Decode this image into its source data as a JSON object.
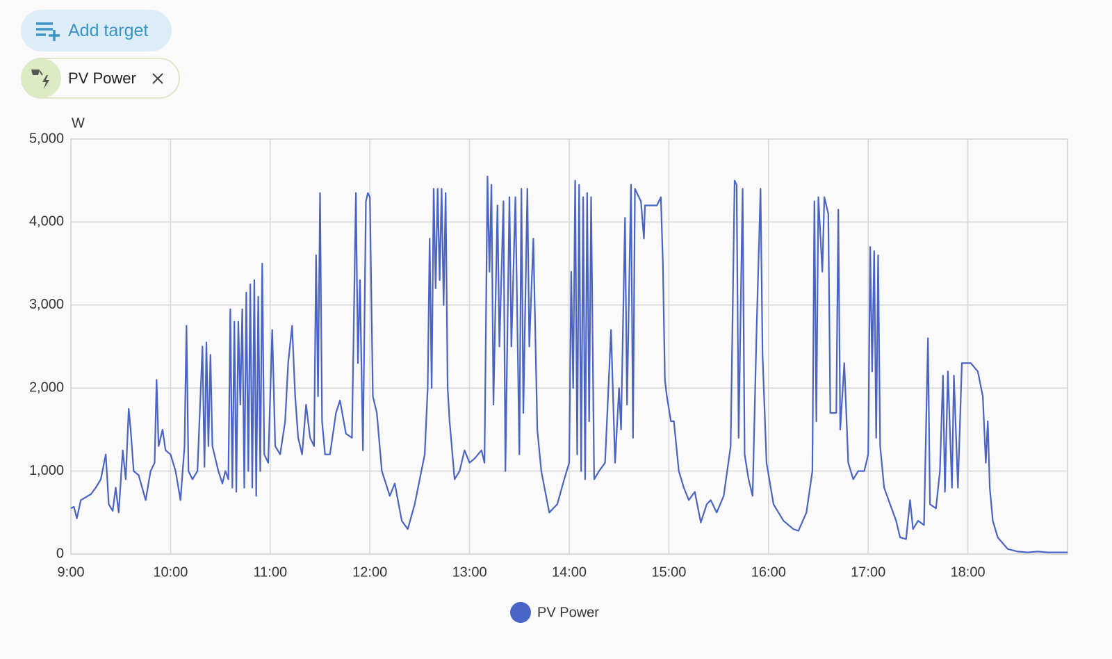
{
  "toolbar": {
    "add_target": "Add target",
    "target_chip": "PV Power"
  },
  "chart_data": {
    "type": "line",
    "y_axis_label": "W",
    "x": [
      9,
      9.03,
      9.06,
      9.1,
      9.2,
      9.25,
      9.3,
      9.35,
      9.38,
      9.42,
      9.45,
      9.48,
      9.52,
      9.55,
      9.58,
      9.6,
      9.63,
      9.68,
      9.75,
      9.8,
      9.84,
      9.86,
      9.88,
      9.92,
      9.95,
      10,
      10.05,
      10.1,
      10.14,
      10.16,
      10.18,
      10.22,
      10.27,
      10.32,
      10.34,
      10.36,
      10.38,
      10.4,
      10.42,
      10.48,
      10.52,
      10.55,
      10.58,
      10.6,
      10.62,
      10.64,
      10.66,
      10.68,
      10.7,
      10.72,
      10.74,
      10.76,
      10.78,
      10.8,
      10.82,
      10.84,
      10.86,
      10.88,
      10.9,
      10.92,
      10.94,
      10.98,
      11.02,
      11.05,
      11.1,
      11.15,
      11.18,
      11.22,
      11.25,
      11.28,
      11.32,
      11.36,
      11.4,
      11.44,
      11.46,
      11.48,
      11.5,
      11.52,
      11.55,
      11.6,
      11.66,
      11.7,
      11.76,
      11.82,
      11.86,
      11.88,
      11.9,
      11.93,
      11.96,
      11.98,
      12,
      12.03,
      12.07,
      12.12,
      12.2,
      12.25,
      12.32,
      12.38,
      12.45,
      12.5,
      12.55,
      12.58,
      12.6,
      12.62,
      12.64,
      12.66,
      12.68,
      12.7,
      12.72,
      12.74,
      12.76,
      12.78,
      12.8,
      12.85,
      12.9,
      12.95,
      13,
      13.05,
      13.12,
      13.15,
      13.18,
      13.2,
      13.22,
      13.24,
      13.28,
      13.3,
      13.34,
      13.36,
      13.4,
      13.42,
      13.46,
      13.5,
      13.52,
      13.54,
      13.58,
      13.6,
      13.64,
      13.68,
      13.72,
      13.8,
      13.88,
      13.95,
      14,
      14.02,
      14.04,
      14.06,
      14.08,
      14.1,
      14.12,
      14.14,
      14.16,
      14.18,
      14.2,
      14.22,
      14.25,
      14.3,
      14.36,
      14.42,
      14.46,
      14.5,
      14.52,
      14.56,
      14.58,
      14.62,
      14.64,
      14.66,
      14.72,
      14.75,
      14.76,
      14.8,
      14.88,
      14.92,
      14.94,
      14.96,
      14.98,
      15.02,
      15.05,
      15.1,
      15.15,
      15.2,
      15.26,
      15.32,
      15.38,
      15.42,
      15.48,
      15.55,
      15.62,
      15.66,
      15.68,
      15.7,
      15.74,
      15.76,
      15.8,
      15.84,
      15.88,
      15.92,
      15.94,
      15.98,
      16.05,
      16.15,
      16.25,
      16.3,
      16.38,
      16.44,
      16.46,
      16.48,
      16.5,
      16.54,
      16.56,
      16.6,
      16.62,
      16.68,
      16.7,
      16.72,
      16.76,
      16.8,
      16.85,
      16.9,
      16.96,
      17,
      17.02,
      17.04,
      17.06,
      17.08,
      17.1,
      17.12,
      17.16,
      17.22,
      17.28,
      17.32,
      17.38,
      17.42,
      17.45,
      17.5,
      17.56,
      17.6,
      17.62,
      17.68,
      17.72,
      17.75,
      17.77,
      17.8,
      17.84,
      17.86,
      17.9,
      17.94,
      17.98,
      18.03,
      18.1,
      18.15,
      18.18,
      18.2,
      18.22,
      18.25,
      18.3,
      18.4,
      18.5,
      18.6,
      18.7,
      18.8,
      18.9,
      19
    ],
    "series": [
      {
        "name": "PV Power",
        "color": "#4a63c7",
        "values": [
          550,
          570,
          430,
          650,
          720,
          800,
          900,
          1200,
          600,
          520,
          800,
          500,
          1250,
          900,
          1750,
          1500,
          1000,
          950,
          650,
          1000,
          1100,
          2100,
          1300,
          1500,
          1250,
          1200,
          1000,
          650,
          1300,
          2750,
          1000,
          900,
          1000,
          2500,
          1050,
          2550,
          1300,
          2400,
          1300,
          1000,
          850,
          1000,
          900,
          2950,
          800,
          2800,
          750,
          2800,
          1800,
          2950,
          800,
          3150,
          1000,
          3250,
          800,
          3300,
          700,
          3100,
          1000,
          3500,
          1200,
          1100,
          2700,
          1300,
          1200,
          1600,
          2300,
          2750,
          1900,
          1400,
          1200,
          1800,
          1400,
          1300,
          3600,
          1900,
          4350,
          1600,
          1200,
          1200,
          1700,
          1850,
          1450,
          1400,
          4350,
          2300,
          3300,
          1250,
          4250,
          4350,
          4300,
          1900,
          1700,
          1000,
          700,
          850,
          400,
          300,
          600,
          900,
          1200,
          2000,
          3800,
          2000,
          4400,
          3200,
          4400,
          3300,
          4400,
          3000,
          4350,
          2000,
          1600,
          900,
          1000,
          1250,
          1100,
          1150,
          1250,
          1100,
          4550,
          3400,
          4450,
          1800,
          4200,
          2500,
          4250,
          1000,
          4300,
          2500,
          4300,
          1200,
          4400,
          1700,
          4400,
          2500,
          3800,
          1500,
          1000,
          500,
          600,
          900,
          1100,
          3400,
          2000,
          4500,
          1200,
          4450,
          1000,
          4300,
          900,
          4350,
          1600,
          4300,
          900,
          1000,
          1100,
          2700,
          1100,
          2000,
          1500,
          4050,
          1800,
          4450,
          1400,
          4400,
          4250,
          3800,
          4200,
          4200,
          4200,
          4300,
          3500,
          2100,
          1900,
          1600,
          1600,
          1000,
          800,
          650,
          750,
          380,
          600,
          650,
          500,
          700,
          1300,
          4500,
          4450,
          1400,
          4400,
          1200,
          900,
          700,
          2700,
          4400,
          2400,
          1100,
          600,
          400,
          300,
          280,
          500,
          1000,
          4250,
          1600,
          4300,
          3400,
          4300,
          4100,
          1700,
          1700,
          4150,
          1500,
          2300,
          1100,
          900,
          1000,
          1000,
          1200,
          3700,
          2200,
          3650,
          1400,
          3600,
          1300,
          800,
          600,
          400,
          200,
          180,
          650,
          300,
          400,
          350,
          2600,
          600,
          550,
          1000,
          2150,
          750,
          2200,
          800,
          2150,
          800,
          2300,
          2300,
          2300,
          2200,
          1900,
          1100,
          1600,
          800,
          400,
          200,
          60,
          30,
          20,
          30,
          20,
          20,
          20
        ]
      }
    ],
    "xlim": [
      9,
      19
    ],
    "xticks": [
      {
        "value": 9,
        "label": "9:00"
      },
      {
        "value": 10,
        "label": "10:00"
      },
      {
        "value": 11,
        "label": "11:00"
      },
      {
        "value": 12,
        "label": "12:00"
      },
      {
        "value": 13,
        "label": "13:00"
      },
      {
        "value": 14,
        "label": "14:00"
      },
      {
        "value": 15,
        "label": "15:00"
      },
      {
        "value": 16,
        "label": "16:00"
      },
      {
        "value": 17,
        "label": "17:00"
      },
      {
        "value": 18,
        "label": "18:00"
      }
    ],
    "ylim": [
      0,
      5000
    ],
    "yticks": [
      0,
      {
        "value": 1000,
        "label": "1,000"
      },
      {
        "value": 2000,
        "label": "2,000"
      },
      {
        "value": 3000,
        "label": "3,000"
      },
      {
        "value": 4000,
        "label": "4,000"
      },
      {
        "value": 5000,
        "label": "5,000"
      }
    ],
    "grid": true,
    "legend": "bottom"
  }
}
